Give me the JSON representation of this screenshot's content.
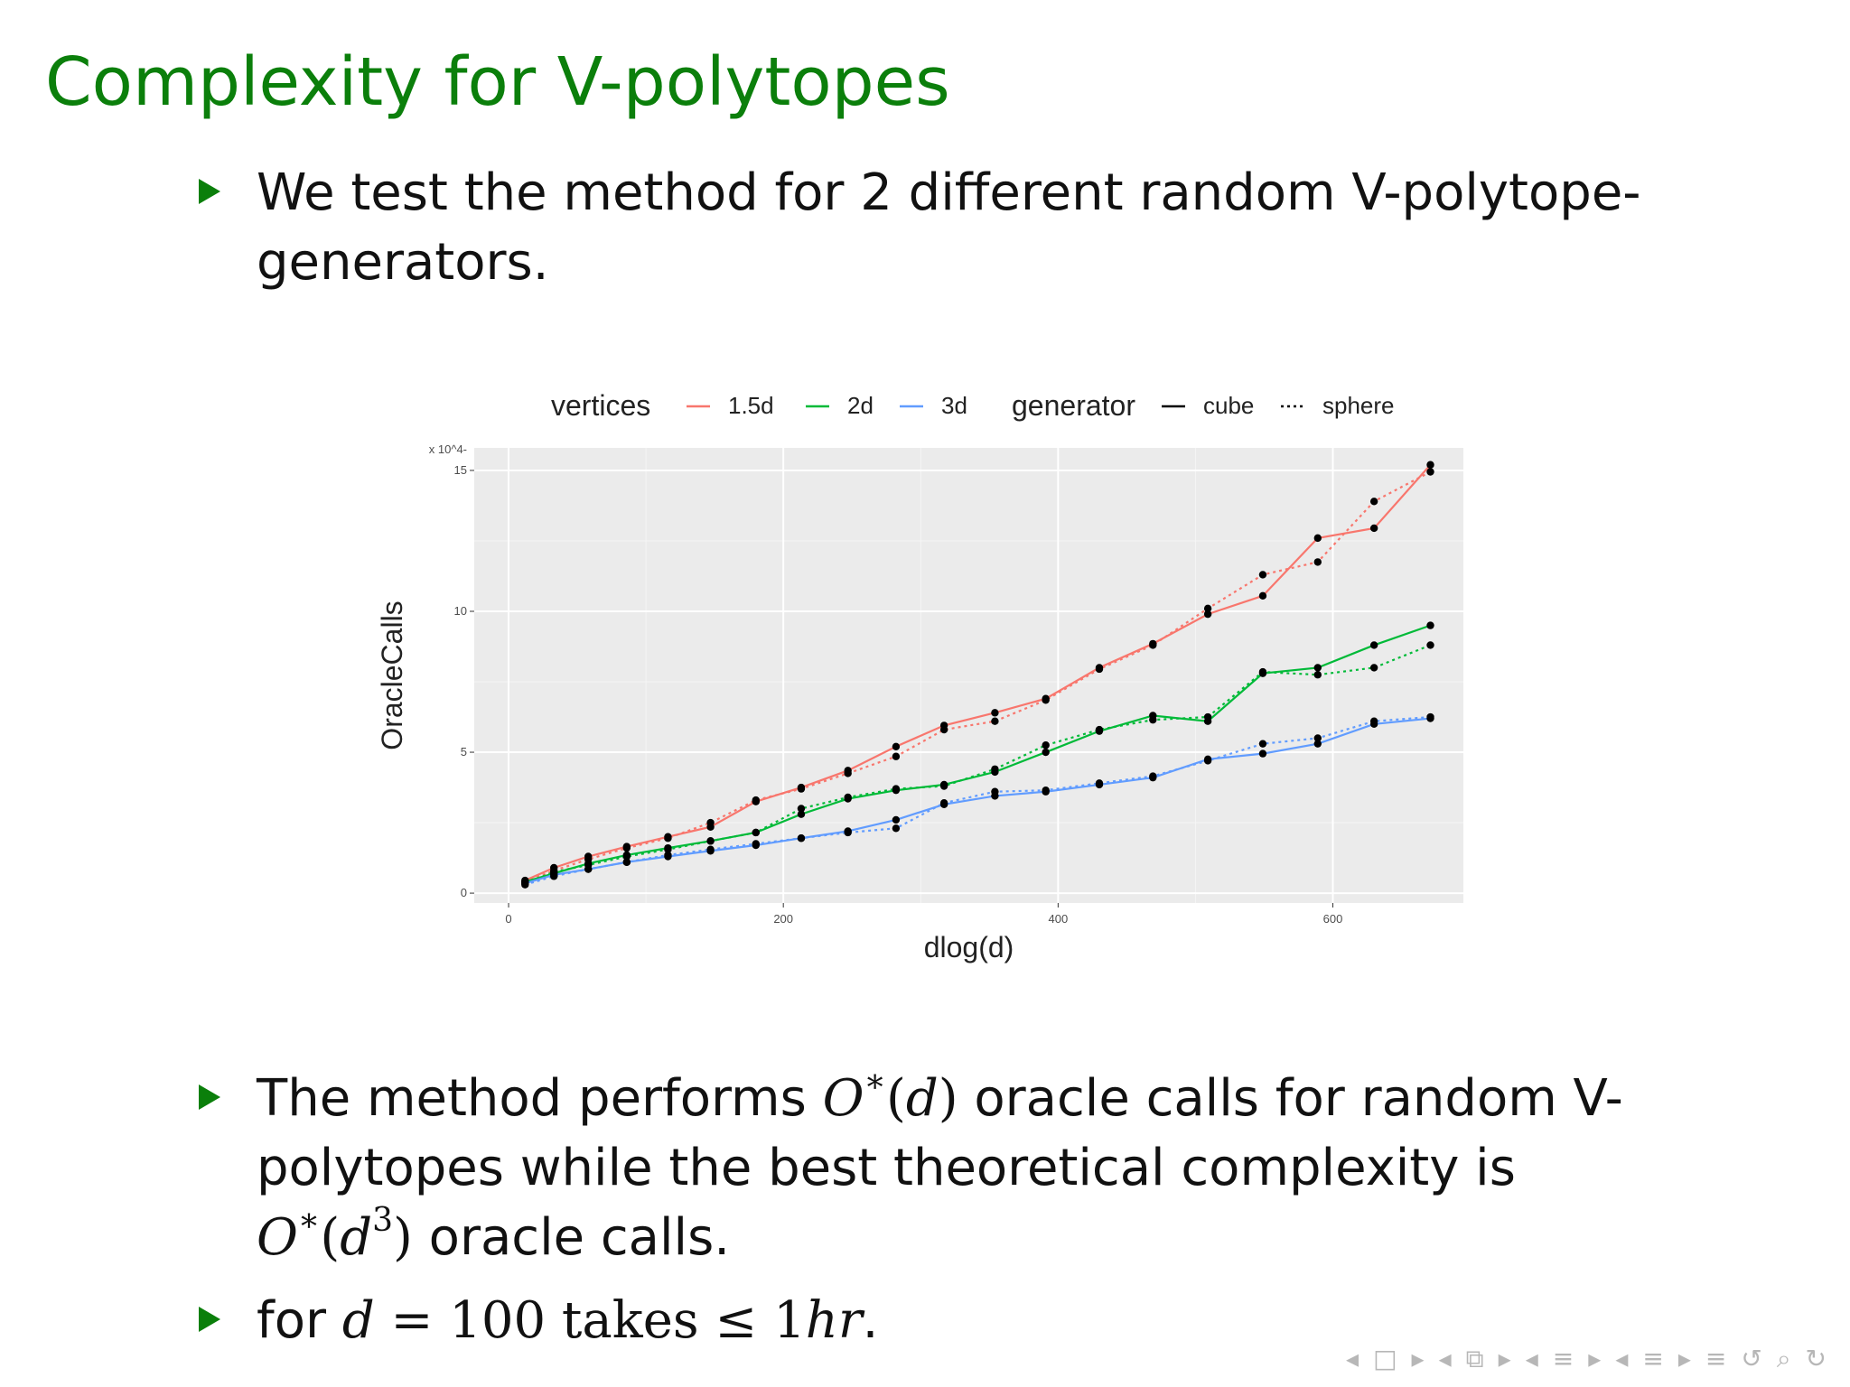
{
  "slide": {
    "title": "Complexity for V-polytopes",
    "bullets": [
      {
        "text_a": "We test the method for 2 different random V-polytope-generators."
      },
      {
        "text_a": "The method performs ",
        "m1_a": "O",
        "m1_star": "∗",
        "m1_paren_open": "(",
        "m1_var": "d",
        "m1_paren_close": ")",
        "text_b": " oracle calls for random V-polytopes while the best theoretical complexity is ",
        "m2_a": "O",
        "m2_star": "∗",
        "m2_paren_open": "(",
        "m2_var": "d",
        "m2_exp": "3",
        "m2_paren_close": ")",
        "text_c": " oracle calls."
      },
      {
        "text_a": "for ",
        "var": "d",
        "eq": " = 100 takes ",
        "le": "≤",
        "val": " 1",
        "unit": "hr",
        "end": "."
      }
    ]
  },
  "chart_data": {
    "type": "line",
    "xlabel": "dlog(d)",
    "ylabel": "OracleCalls",
    "y_multiplier_label": "x 10^4",
    "xlim": [
      -25,
      695
    ],
    "ylim": [
      -0.35,
      15.8
    ],
    "x_ticks": [
      0,
      200,
      400,
      600
    ],
    "y_ticks": [
      0,
      5,
      10,
      15
    ],
    "grid": true,
    "legend_position": "top",
    "legend_groups": [
      {
        "title": "vertices",
        "items": [
          {
            "label": "1.5d",
            "color": "#F8766D"
          },
          {
            "label": "2d",
            "color": "#00BA38"
          },
          {
            "label": "3d",
            "color": "#619CFF"
          }
        ]
      },
      {
        "title": "generator",
        "items": [
          {
            "label": "cube",
            "dash": "solid"
          },
          {
            "label": "sphere",
            "dash": "dotted"
          }
        ]
      }
    ],
    "x": [
      12,
      33,
      58,
      86,
      116,
      147,
      180,
      213,
      247,
      282,
      317,
      354,
      391,
      430,
      469,
      509,
      549,
      589,
      630,
      671
    ],
    "series": [
      {
        "vertices": "1.5d",
        "generator": "cube",
        "color": "#F8766D",
        "dash": "solid",
        "values": [
          0.45,
          0.9,
          1.3,
          1.65,
          2.0,
          2.35,
          3.25,
          3.75,
          4.35,
          5.2,
          5.95,
          6.4,
          6.9,
          8.0,
          8.85,
          9.9,
          10.55,
          12.6,
          12.95,
          15.2
        ]
      },
      {
        "vertices": "1.5d",
        "generator": "sphere",
        "color": "#F8766D",
        "dash": "dotted",
        "values": [
          0.4,
          0.8,
          1.2,
          1.6,
          1.95,
          2.5,
          3.3,
          3.7,
          4.25,
          4.85,
          5.8,
          6.1,
          6.85,
          7.95,
          8.8,
          10.1,
          11.3,
          11.75,
          13.9,
          14.95
        ]
      },
      {
        "vertices": "2d",
        "generator": "cube",
        "color": "#00BA38",
        "dash": "solid",
        "values": [
          0.4,
          0.7,
          1.05,
          1.35,
          1.6,
          1.85,
          2.15,
          2.8,
          3.35,
          3.65,
          3.85,
          4.3,
          5.0,
          5.75,
          6.3,
          6.1,
          7.8,
          8.0,
          8.8,
          9.5
        ]
      },
      {
        "vertices": "2d",
        "generator": "sphere",
        "color": "#00BA38",
        "dash": "dotted",
        "values": [
          0.35,
          0.75,
          1.0,
          1.3,
          1.55,
          1.85,
          2.15,
          3.0,
          3.4,
          3.7,
          3.8,
          4.4,
          5.25,
          5.8,
          6.15,
          6.25,
          7.85,
          7.75,
          8.0,
          8.8
        ]
      },
      {
        "vertices": "3d",
        "generator": "cube",
        "color": "#619CFF",
        "dash": "solid",
        "values": [
          0.35,
          0.65,
          0.85,
          1.1,
          1.3,
          1.5,
          1.7,
          1.95,
          2.2,
          2.6,
          3.15,
          3.45,
          3.6,
          3.85,
          4.1,
          4.75,
          4.95,
          5.3,
          6.0,
          6.2
        ]
      },
      {
        "vertices": "3d",
        "generator": "sphere",
        "color": "#619CFF",
        "dash": "dotted",
        "values": [
          0.3,
          0.6,
          0.85,
          1.1,
          1.35,
          1.55,
          1.75,
          1.95,
          2.15,
          2.3,
          3.2,
          3.6,
          3.65,
          3.9,
          4.15,
          4.7,
          5.3,
          5.5,
          6.1,
          6.25
        ]
      }
    ]
  },
  "nav": {
    "icons": [
      "◂",
      "□",
      "▸",
      "◂",
      "⧉",
      "▸",
      "◂",
      "≡",
      "▸",
      "◂",
      "≡",
      "▸",
      "≡",
      "↺",
      "⌕",
      "↻"
    ]
  }
}
